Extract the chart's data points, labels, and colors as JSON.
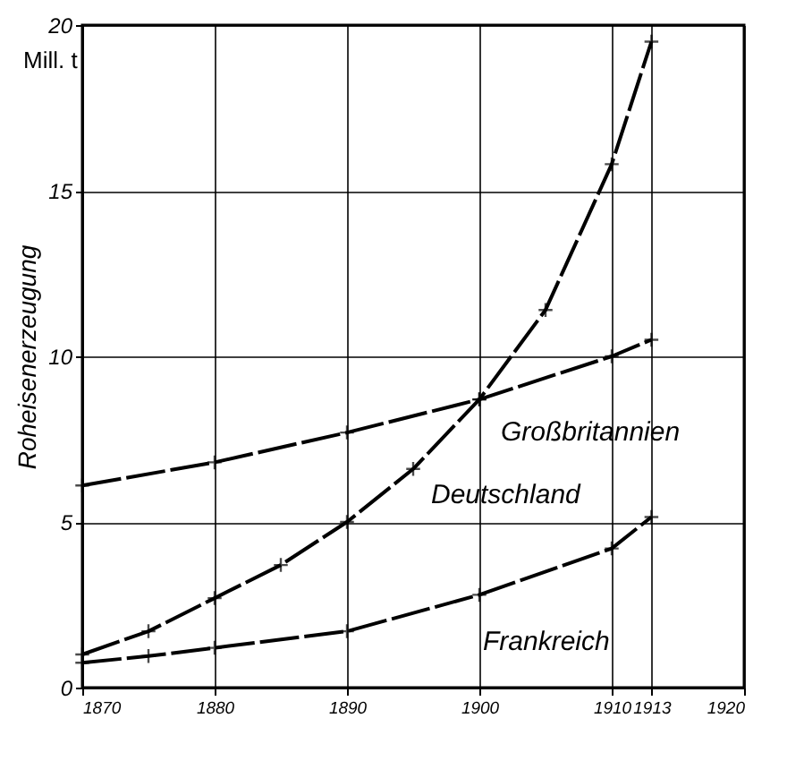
{
  "chart_data": {
    "type": "line",
    "ylabel": "Roheisenerzeugung",
    "annotations": [
      "Mill. t"
    ],
    "xlim": [
      1870,
      1920
    ],
    "xticks": [
      1870,
      1880,
      1890,
      1900,
      1910,
      1913,
      1920
    ],
    "ylim": [
      0,
      20
    ],
    "yticks": [
      0,
      5,
      10,
      15,
      20
    ],
    "grid": true,
    "legend": false,
    "marker": "cross",
    "line_style": "dashed",
    "series": [
      {
        "name": "Deutschland",
        "color": "#000000",
        "x": [
          1870,
          1875,
          1880,
          1885,
          1890,
          1895,
          1900,
          1905,
          1910,
          1913
        ],
        "values": [
          1.0,
          1.7,
          2.7,
          3.7,
          5.0,
          6.6,
          8.7,
          11.4,
          15.8,
          19.5
        ]
      },
      {
        "name": "Großbritannien",
        "color": "#000000",
        "x": [
          1870,
          1880,
          1890,
          1900,
          1910,
          1913
        ],
        "values": [
          6.1,
          6.8,
          7.7,
          8.7,
          10.0,
          10.5
        ]
      },
      {
        "name": "Frankreich",
        "color": "#000000",
        "x": [
          1870,
          1875,
          1880,
          1890,
          1900,
          1910,
          1913
        ],
        "values": [
          0.75,
          0.95,
          1.2,
          1.7,
          2.8,
          4.2,
          5.15
        ]
      }
    ]
  }
}
